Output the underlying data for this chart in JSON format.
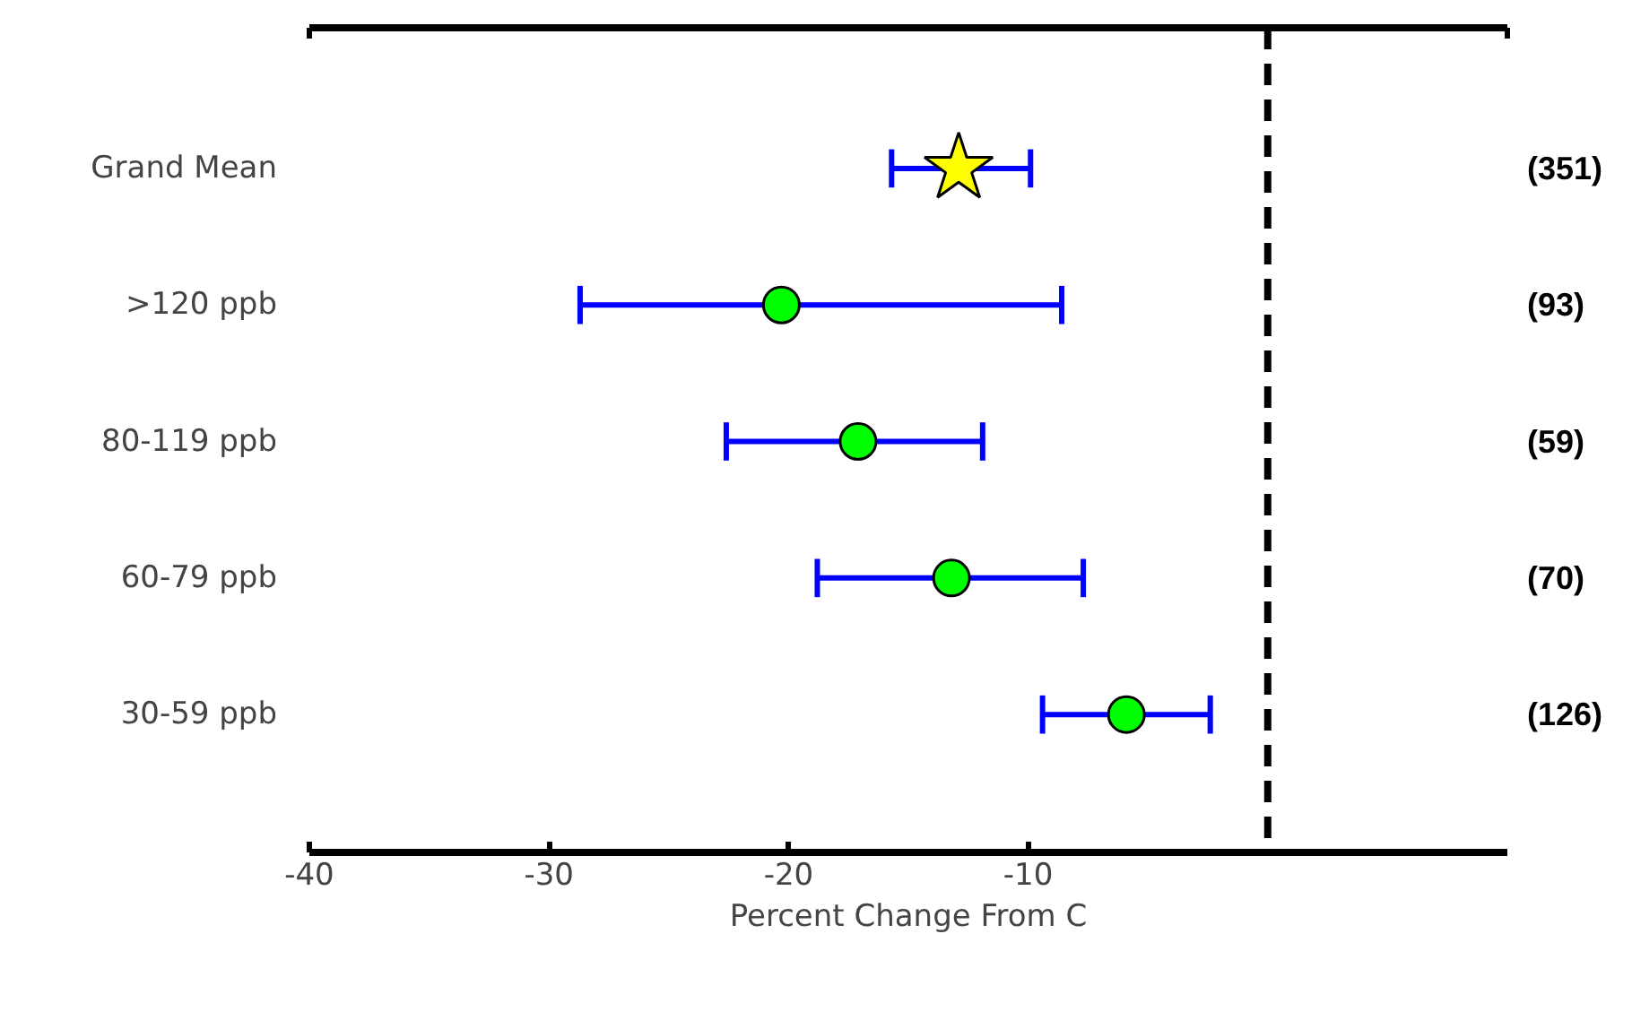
{
  "chart_data": {
    "type": "scatter",
    "orientation": "horizontal",
    "categories": [
      "Grand Mean",
      ">120 ppb",
      "80-119 ppb",
      "60-79 ppb",
      "30-59 ppb"
    ],
    "series": [
      {
        "color": "#ffff00",
        "marker": "star",
        "values": [
          -12.9,
          null,
          null,
          null,
          null
        ],
        "errors": [
          [
            -15.7,
            -9.9
          ],
          null,
          null,
          null,
          null
        ]
      },
      {
        "color": "#00ff00",
        "marker": "circle",
        "values": [
          null,
          -20.3,
          -17.1,
          -13.2,
          -5.9
        ],
        "errors": [
          null,
          [
            -28.7,
            -8.6
          ],
          [
            -22.6,
            -11.9
          ],
          [
            -18.8,
            -7.7
          ],
          [
            -9.4,
            -2.4
          ]
        ]
      }
    ],
    "xlim": [
      -40,
      10
    ],
    "xticks": [
      -40,
      -30,
      -20,
      -10
    ],
    "xlabel": "Percent Change From C",
    "ref_lines": [
      {
        "axis": "x",
        "value": 0,
        "line_style": "dashed",
        "color": "#000000"
      }
    ],
    "annotations": [
      "(351)",
      "(93)",
      "(59)",
      "(70)",
      "(126)"
    ],
    "grid": false
  }
}
